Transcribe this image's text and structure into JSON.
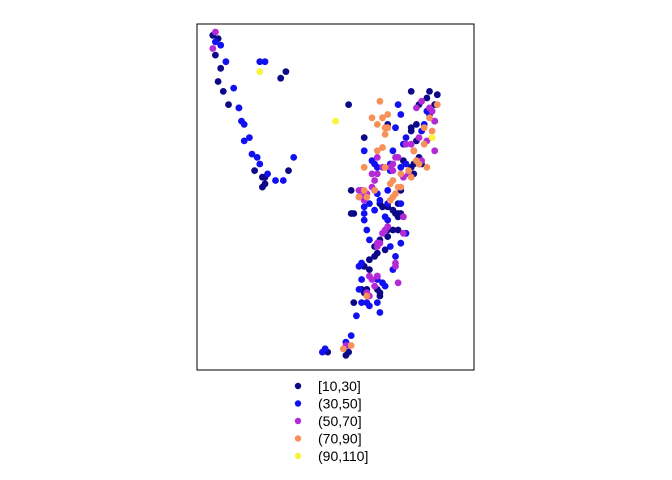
{
  "chart_data": {
    "type": "scatter",
    "title": "",
    "xlabel": "",
    "ylabel": "",
    "axes_visible": false,
    "frame": true,
    "legend_position": "bottom",
    "x_range": [
      0,
      100
    ],
    "y_range": [
      0,
      100
    ],
    "classes": [
      {
        "label": "[10,30]",
        "color": "#0d0887"
      },
      {
        "label": "(30,50]",
        "color": "#1010f0"
      },
      {
        "label": "(50,70]",
        "color": "#b42ad6"
      },
      {
        "label": "(70,90]",
        "color": "#f7915a"
      },
      {
        "label": "(90,110]",
        "color": "#f9f53a"
      }
    ],
    "series": [
      {
        "class": 0,
        "points": [
          [
            3,
            99
          ],
          [
            5,
            98
          ],
          [
            4,
            93
          ],
          [
            6,
            89
          ],
          [
            5,
            85
          ],
          [
            7,
            82
          ],
          [
            9,
            78
          ],
          [
            13,
            77
          ],
          [
            19,
            58
          ],
          [
            22,
            56
          ],
          [
            22,
            53
          ],
          [
            23,
            56
          ],
          [
            23,
            54
          ],
          [
            32,
            58
          ],
          [
            29,
            86
          ],
          [
            31,
            88
          ],
          [
            55,
            78
          ],
          [
            70,
            72
          ],
          [
            70,
            71
          ],
          [
            79,
            82
          ],
          [
            82,
            78
          ],
          [
            85,
            80
          ],
          [
            86,
            82
          ],
          [
            89,
            81
          ],
          [
            88,
            78
          ],
          [
            80,
            57
          ],
          [
            79,
            59
          ],
          [
            75,
            52
          ],
          [
            74,
            44
          ],
          [
            72,
            46
          ],
          [
            70,
            47
          ],
          [
            68,
            47
          ],
          [
            67,
            48
          ],
          [
            74,
            48
          ],
          [
            72,
            40
          ],
          [
            70,
            40
          ],
          [
            67,
            37
          ],
          [
            65,
            35
          ],
          [
            66,
            33
          ],
          [
            65,
            32
          ],
          [
            63,
            31
          ],
          [
            63,
            28
          ],
          [
            60,
            22
          ],
          [
            61,
            21
          ],
          [
            62,
            22
          ],
          [
            57,
            18
          ],
          [
            47,
            3
          ],
          [
            54,
            2
          ],
          [
            55,
            3
          ],
          [
            73,
            45
          ],
          [
            74,
            45
          ],
          [
            75,
            45
          ],
          [
            74,
            40
          ],
          [
            70,
            38
          ],
          [
            69,
            34
          ],
          [
            61,
            29
          ],
          [
            66,
            26
          ],
          [
            66,
            22
          ],
          [
            67,
            21
          ],
          [
            67,
            20
          ],
          [
            57,
            45
          ],
          [
            56,
            45
          ],
          [
            56,
            52
          ],
          [
            81,
            72
          ],
          [
            79,
            70
          ],
          [
            81,
            67
          ],
          [
            82,
            62
          ],
          [
            80,
            60
          ],
          [
            83,
            60
          ],
          [
            61,
            68
          ],
          [
            79,
            71
          ],
          [
            76,
            61
          ]
        ]
      },
      {
        "class": 1,
        "points": [
          [
            4,
            97
          ],
          [
            6,
            96
          ],
          [
            8,
            91
          ],
          [
            11,
            83
          ],
          [
            13,
            77
          ],
          [
            14,
            73
          ],
          [
            15,
            72
          ],
          [
            17,
            68
          ],
          [
            15,
            67
          ],
          [
            18,
            63
          ],
          [
            20,
            62
          ],
          [
            21,
            60
          ],
          [
            24,
            57
          ],
          [
            27,
            55
          ],
          [
            30,
            55
          ],
          [
            34,
            62
          ],
          [
            21,
            91
          ],
          [
            23,
            91
          ],
          [
            61,
            64
          ],
          [
            64,
            61
          ],
          [
            65,
            60
          ],
          [
            66,
            59
          ],
          [
            66,
            51
          ],
          [
            67,
            49
          ],
          [
            63,
            48
          ],
          [
            61,
            47
          ],
          [
            61,
            45
          ],
          [
            61,
            43
          ],
          [
            62,
            40
          ],
          [
            63,
            37
          ],
          [
            60,
            30
          ],
          [
            59,
            29
          ],
          [
            60,
            25
          ],
          [
            59,
            22
          ],
          [
            62,
            18
          ],
          [
            60,
            18
          ],
          [
            63,
            17
          ],
          [
            67,
            15
          ],
          [
            66,
            18
          ],
          [
            58,
            14
          ],
          [
            54,
            6
          ],
          [
            56,
            8
          ],
          [
            46,
            4
          ],
          [
            45,
            3
          ],
          [
            71,
            35
          ],
          [
            73,
            32
          ],
          [
            72,
            28
          ],
          [
            66,
            25
          ],
          [
            69,
            23
          ],
          [
            68,
            24
          ],
          [
            75,
            36
          ],
          [
            77,
            39
          ],
          [
            69,
            44
          ],
          [
            70,
            43
          ],
          [
            70,
            52
          ],
          [
            75,
            59
          ],
          [
            77,
            68
          ],
          [
            74,
            78
          ],
          [
            75,
            75
          ],
          [
            85,
            76
          ],
          [
            86,
            75
          ],
          [
            88,
            73
          ],
          [
            84,
            72
          ],
          [
            83,
            70
          ],
          [
            73,
            71
          ],
          [
            76,
            66
          ],
          [
            77,
            60
          ],
          [
            72,
            64
          ],
          [
            71,
            60
          ],
          [
            71,
            58
          ],
          [
            75,
            48
          ],
          [
            70,
            48
          ],
          [
            65,
            46
          ]
        ]
      },
      {
        "class": 2,
        "points": [
          [
            3,
            95
          ],
          [
            4,
            100
          ],
          [
            83,
            79
          ],
          [
            81,
            77
          ],
          [
            86,
            77
          ],
          [
            87,
            76
          ],
          [
            88,
            73
          ],
          [
            79,
            66
          ],
          [
            80,
            64
          ],
          [
            83,
            61
          ],
          [
            82,
            60
          ],
          [
            78,
            57
          ],
          [
            76,
            56
          ],
          [
            82,
            68
          ],
          [
            77,
            66
          ],
          [
            74,
            62
          ],
          [
            73,
            62
          ],
          [
            72,
            60
          ],
          [
            72,
            58
          ],
          [
            71,
            59
          ],
          [
            68,
            59
          ],
          [
            66,
            62
          ],
          [
            66,
            57
          ],
          [
            64,
            57
          ],
          [
            65,
            55
          ],
          [
            64,
            53
          ],
          [
            65,
            52
          ],
          [
            62,
            51
          ],
          [
            60,
            52
          ],
          [
            60,
            50
          ],
          [
            59,
            52
          ],
          [
            59,
            50
          ],
          [
            61,
            49
          ],
          [
            70,
            41
          ],
          [
            69,
            40
          ],
          [
            68,
            39
          ],
          [
            66,
            35
          ],
          [
            66,
            36
          ],
          [
            67,
            36
          ],
          [
            63,
            26
          ],
          [
            64,
            25
          ],
          [
            66,
            26
          ],
          [
            65,
            23
          ],
          [
            62,
            21
          ],
          [
            63,
            20
          ],
          [
            54,
            5
          ],
          [
            55,
            5
          ],
          [
            73,
            29
          ],
          [
            73,
            30
          ],
          [
            74,
            24
          ],
          [
            85,
            67
          ],
          [
            88,
            64
          ],
          [
            76,
            44
          ],
          [
            76,
            39
          ]
        ]
      },
      {
        "class": 3,
        "points": [
          [
            67,
            79
          ],
          [
            64,
            74
          ],
          [
            66,
            72
          ],
          [
            75,
            57
          ],
          [
            82,
            60
          ],
          [
            80,
            64
          ],
          [
            84,
            71
          ],
          [
            89,
            78
          ],
          [
            86,
            74
          ],
          [
            87,
            70
          ],
          [
            84,
            66
          ],
          [
            81,
            61
          ],
          [
            73,
            51
          ],
          [
            72,
            50
          ],
          [
            71,
            49
          ],
          [
            59,
            50
          ],
          [
            56,
            5
          ],
          [
            53,
            4
          ],
          [
            62,
            20
          ],
          [
            68,
            65
          ],
          [
            68,
            74
          ],
          [
            69,
            71
          ],
          [
            70,
            75
          ],
          [
            70,
            71
          ],
          [
            69,
            69
          ],
          [
            66,
            64
          ],
          [
            69,
            59
          ],
          [
            78,
            58
          ],
          [
            79,
            56
          ],
          [
            72,
            55
          ],
          [
            71,
            54
          ],
          [
            75,
            53
          ],
          [
            74,
            53
          ],
          [
            85,
            59
          ],
          [
            65,
            52
          ],
          [
            61,
            59
          ],
          [
            61,
            52
          ],
          [
            62,
            50
          ]
        ]
      },
      {
        "class": 4,
        "points": [
          [
            21,
            88
          ],
          [
            50,
            73
          ],
          [
            87,
            68
          ]
        ]
      }
    ]
  }
}
